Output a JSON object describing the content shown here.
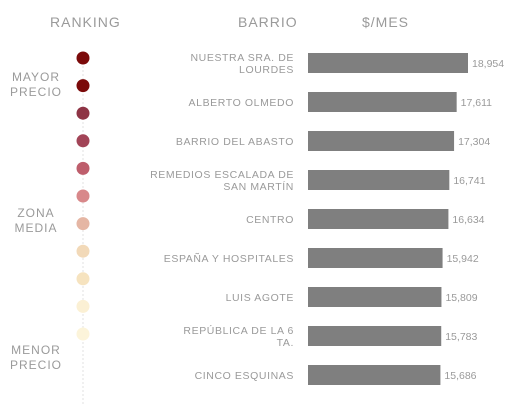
{
  "headers": {
    "ranking": "RANKING",
    "barrio": "BARRIO",
    "mes": "$/MES"
  },
  "groups": [
    {
      "label": "MAYOR\nPRECIO"
    },
    {
      "label": "ZONA\nMEDIA"
    },
    {
      "label": "MENOR\nPRECIO"
    }
  ],
  "chart_data": {
    "type": "bar",
    "orientation": "horizontal",
    "categories": [
      [
        "NUESTRA SRA. DE",
        "LOURDES"
      ],
      [
        "ALBERTO OLMEDO"
      ],
      [
        "BARRIO DEL ABASTO"
      ],
      [
        "REMEDIOS ESCALADA DE",
        "SAN MARTÍN"
      ],
      [
        "CENTRO"
      ],
      [
        "ESPAÑA Y HOSPITALES"
      ],
      [
        "LUIS AGOTE"
      ],
      [
        "REPÚBLICA DE LA 6",
        "TA."
      ],
      [
        "CINCO ESQUINAS"
      ]
    ],
    "values": [
      18954,
      17611,
      17304,
      16741,
      16634,
      15942,
      15809,
      15783,
      15686
    ],
    "value_labels": [
      "18,954",
      "17,611",
      "17,304",
      "16,741",
      "16,634",
      "15,942",
      "15,809",
      "15,783",
      "15,686"
    ],
    "bar_color": "#7f7f7f",
    "ranking_dot_colors": [
      "#7b0a0a",
      "#7b0a0a",
      "#8e3445",
      "#a24457",
      "#be5e6c",
      "#d8888a",
      "#e5b6a4",
      "#f2d9b8",
      "#f6e3bf",
      "#fbf0d4",
      "#fcf4da"
    ]
  }
}
